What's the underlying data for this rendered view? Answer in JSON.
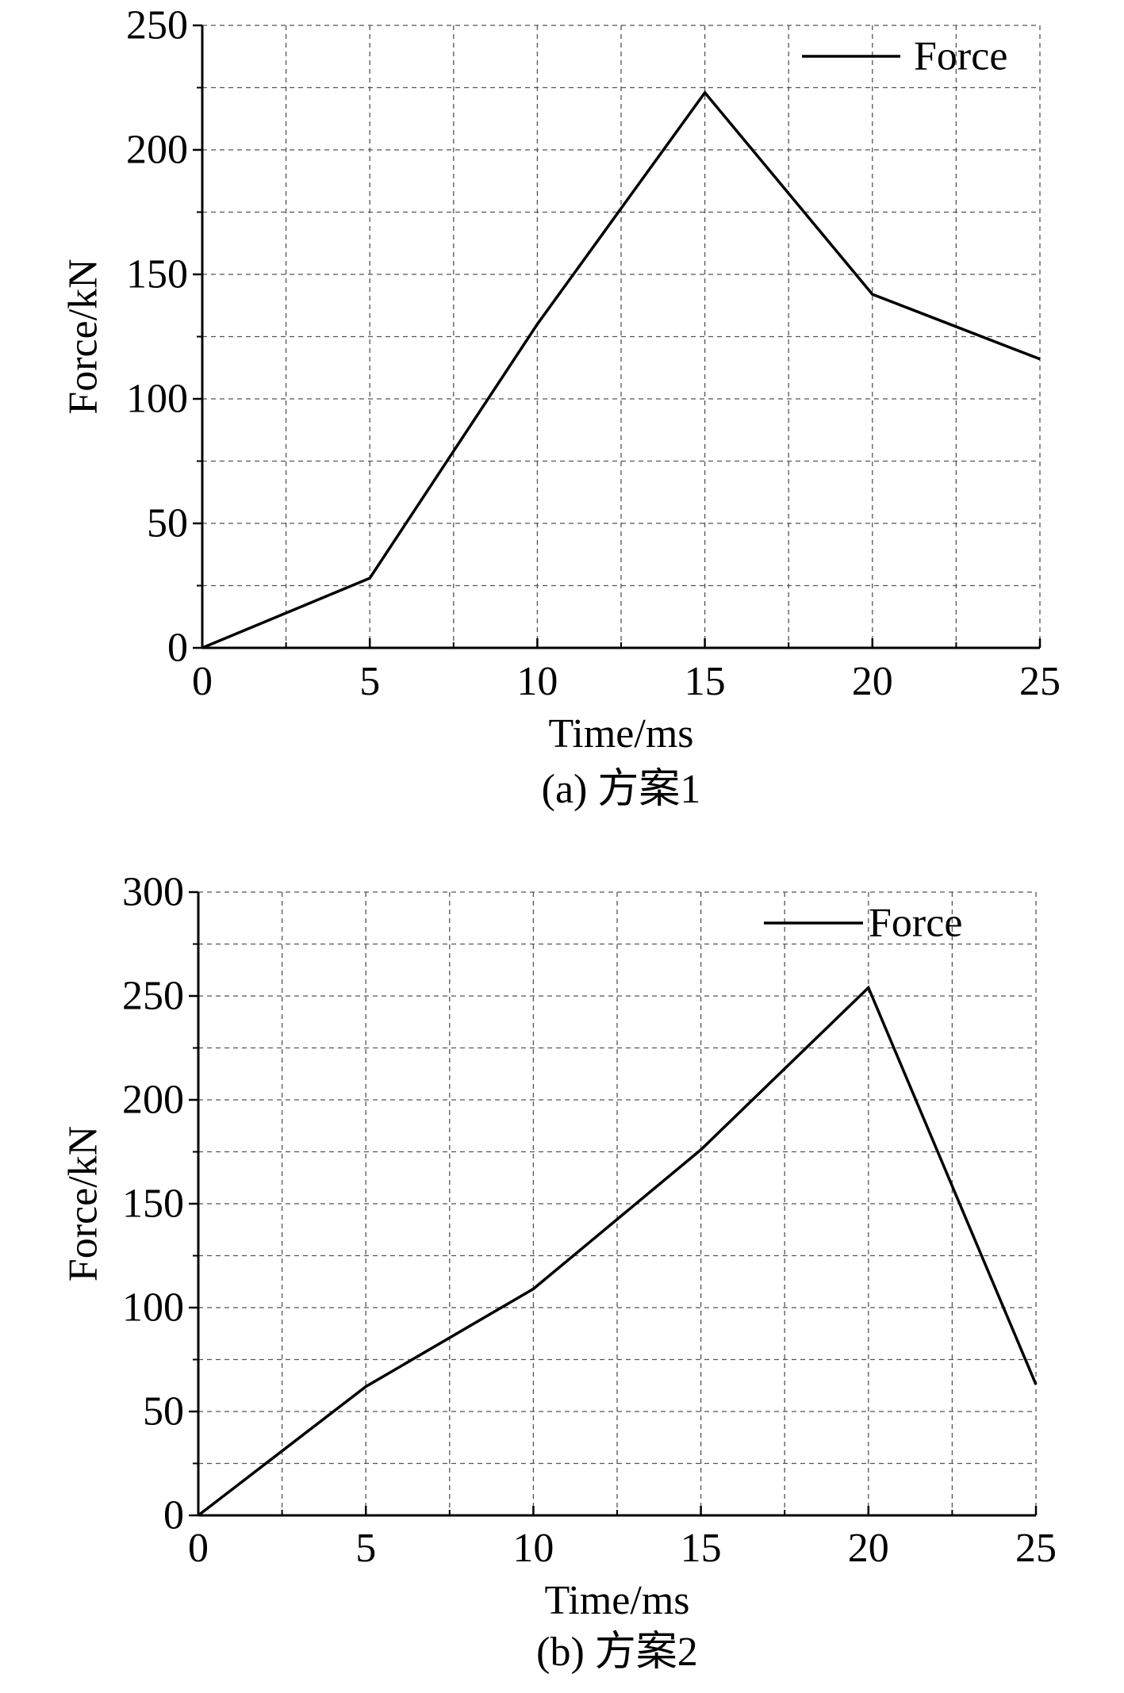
{
  "colors": {
    "line": "#000000",
    "grid": "#555555",
    "background": "#ffffff"
  },
  "chart_data": [
    {
      "type": "line",
      "caption": "(a) 方案1",
      "xlabel": "Time/ms",
      "ylabel": "Force/kN",
      "xlim": [
        0,
        25
      ],
      "ylim": [
        0,
        250
      ],
      "xticks": [
        0,
        5,
        10,
        15,
        20,
        25
      ],
      "yticks": [
        0,
        50,
        100,
        150,
        200,
        250
      ],
      "x_minor_ticks": [
        2.5,
        7.5,
        12.5,
        17.5,
        22.5
      ],
      "y_minor_ticks": [
        25,
        75,
        125,
        175,
        225
      ],
      "grid": true,
      "legend_position": "top-right",
      "series": [
        {
          "name": "Force",
          "x": [
            0,
            5,
            10,
            15,
            20,
            25
          ],
          "values": [
            0,
            28,
            130,
            223,
            142,
            116
          ]
        }
      ]
    },
    {
      "type": "line",
      "caption": "(b) 方案2",
      "xlabel": "Time/ms",
      "ylabel": "Force/kN",
      "xlim": [
        0,
        25
      ],
      "ylim": [
        0,
        300
      ],
      "xticks": [
        0,
        5,
        10,
        15,
        20,
        25
      ],
      "yticks": [
        0,
        50,
        100,
        150,
        200,
        250,
        300
      ],
      "x_minor_ticks": [
        2.5,
        7.5,
        12.5,
        17.5,
        22.5
      ],
      "y_minor_ticks": [
        25,
        75,
        125,
        175,
        225,
        275
      ],
      "grid": true,
      "legend_position": "top-right",
      "series": [
        {
          "name": "Force",
          "x": [
            0,
            5,
            10,
            15,
            20,
            25
          ],
          "values": [
            0,
            62,
            109,
            176,
            254,
            63
          ]
        }
      ]
    }
  ]
}
